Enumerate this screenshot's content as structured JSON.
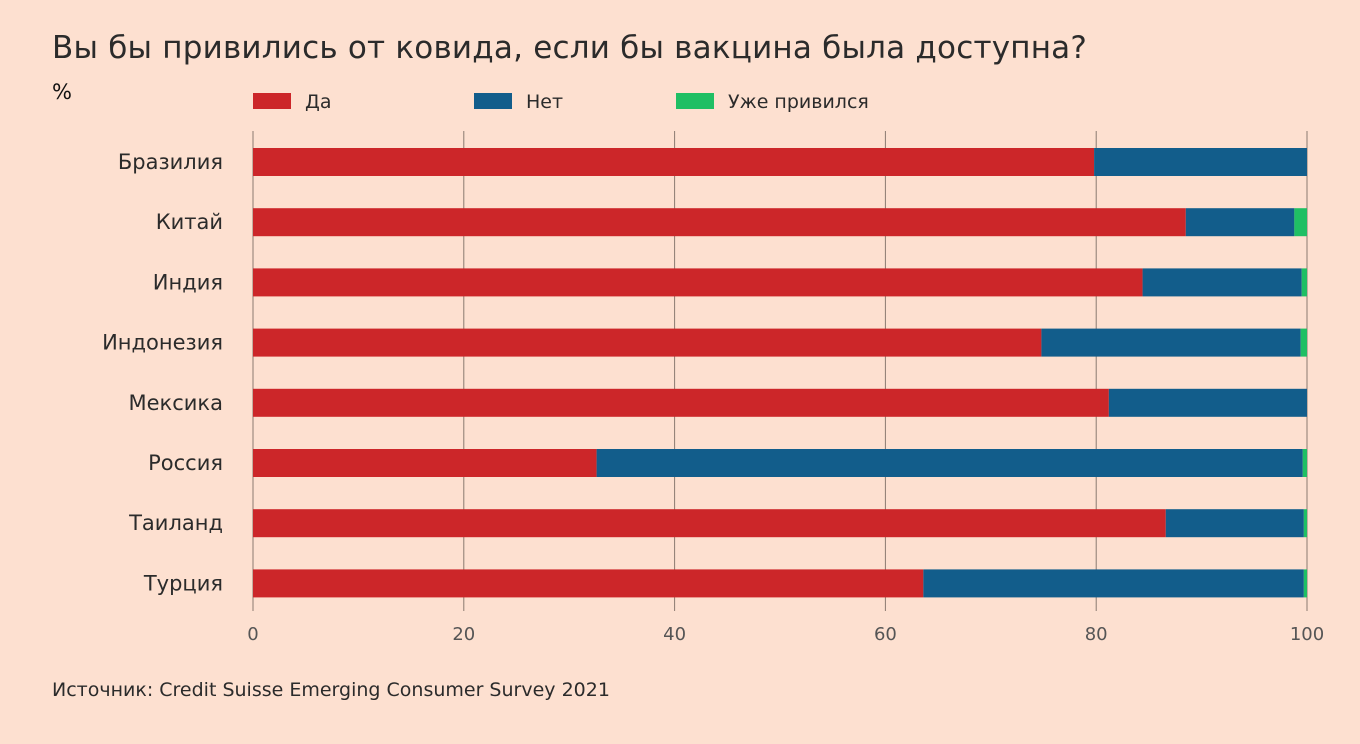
{
  "title": "Вы бы привились от ковида, если бы вакцина была доступна?",
  "unit_label": "%",
  "source": "Источник: Credit Suisse Emerging Consumer Survey 2021",
  "colors": {
    "background": "#fde0d0",
    "yes": "#cc2629",
    "no": "#125d8b",
    "vaccinated": "#1fbf64",
    "grid": "#8a7a70"
  },
  "chart_data": {
    "type": "bar",
    "orientation": "horizontal",
    "stacked": true,
    "title": "Вы бы привились от ковида, если бы вакцина была доступна?",
    "xlabel": "",
    "ylabel": "%",
    "xlim": [
      0,
      100
    ],
    "ticks": [
      0,
      20,
      40,
      60,
      80,
      100
    ],
    "grid": true,
    "legend_position": "top",
    "categories": [
      "Бразилия",
      "Китай",
      "Индия",
      "Индонезия",
      "Мексика",
      "Россия",
      "Таиланд",
      "Турция"
    ],
    "series": [
      {
        "name": "Да",
        "color": "#cc2629",
        "values": [
          79.8,
          88.5,
          84.4,
          74.8,
          81.2,
          32.6,
          86.6,
          63.6
        ]
      },
      {
        "name": "Нет",
        "color": "#125d8b",
        "values": [
          20.2,
          10.3,
          15.1,
          24.6,
          18.8,
          67.0,
          13.1,
          36.1
        ]
      },
      {
        "name": "Уже привился",
        "color": "#1fbf64",
        "values": [
          0,
          1.2,
          0.5,
          0.6,
          0,
          0.4,
          0.3,
          0.3
        ]
      }
    ]
  }
}
